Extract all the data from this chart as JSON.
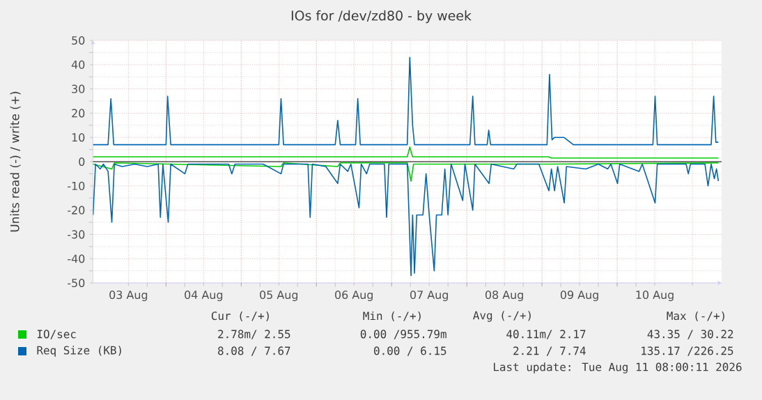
{
  "chart_data": {
    "type": "line",
    "title": "IOs for /dev/zd80 - by week",
    "ylabel": "Units read (-) / write (+)",
    "xlim": [
      "2026-08-03T00:40",
      "2026-08-11T09:20"
    ],
    "ylim": [
      -50,
      50
    ],
    "yticks": [
      -50,
      -40,
      -30,
      -20,
      -10,
      0,
      10,
      20,
      30,
      40,
      50
    ],
    "xticks": [
      {
        "value": "2026-08-03T12:00",
        "label": "03 Aug"
      },
      {
        "value": "2026-08-04T12:00",
        "label": "04 Aug"
      },
      {
        "value": "2026-08-05T12:00",
        "label": "05 Aug"
      },
      {
        "value": "2026-08-06T12:00",
        "label": "06 Aug"
      },
      {
        "value": "2026-08-07T12:00",
        "label": "07 Aug"
      },
      {
        "value": "2026-08-08T12:00",
        "label": "08 Aug"
      },
      {
        "value": "2026-08-09T12:00",
        "label": "09 Aug"
      },
      {
        "value": "2026-08-10T12:00",
        "label": "10 Aug"
      },
      {
        "value": "2026-08-04T00:00",
        "label": null
      },
      {
        "value": "2026-08-05T00:00",
        "label": null
      },
      {
        "value": "2026-08-06T00:00",
        "label": null
      },
      {
        "value": "2026-08-07T00:00",
        "label": null
      },
      {
        "value": "2026-08-08T00:00",
        "label": null
      },
      {
        "value": "2026-08-09T00:00",
        "label": null
      },
      {
        "value": "2026-08-10T00:00",
        "label": null
      },
      {
        "value": "2026-08-11T00:00",
        "label": null
      }
    ],
    "grid": true,
    "legend": "bottom",
    "series": [
      {
        "color": "#00cc00",
        "x": [
          "2026-08-03T00:42",
          "2026-08-03T06:42",
          "2026-08-03T07:30",
          "2026-08-05T12:42",
          "2026-08-05T13:30",
          "2026-08-06T06:48",
          "2026-08-06T07:36",
          "2026-08-07T05:00",
          "2026-08-07T06:12",
          "2026-08-07T07:00",
          "2026-08-09T02:12",
          "2026-08-11T08:18"
        ],
        "values": [
          -1,
          -3,
          -0.5,
          -2,
          -0.5,
          -2,
          -0.5,
          -0.5,
          -8,
          -1,
          -1,
          -0.5
        ]
      },
      {
        "name": "IO/sec",
        "color": "#00cc00",
        "x": [
          "2026-08-03T00:42",
          "2026-08-07T05:00",
          "2026-08-07T05:48",
          "2026-08-07T06:42",
          "2026-08-09T02:00",
          "2026-08-09T03:00",
          "2026-08-11T08:18"
        ],
        "values": [
          2,
          2,
          6,
          2,
          2,
          1.5,
          1.5
        ]
      },
      {
        "color": "#0066b3",
        "x": [
          "2026-08-03T00:42",
          "2026-08-03T01:30",
          "2026-08-03T03:00",
          "2026-08-03T04:00",
          "2026-08-03T05:30",
          "2026-08-03T06:42",
          "2026-08-03T07:30",
          "2026-08-03T10:00",
          "2026-08-03T14:00",
          "2026-08-03T18:00",
          "2026-08-03T21:30",
          "2026-08-03T22:12",
          "2026-08-03T23:00",
          "2026-08-04T00:42",
          "2026-08-04T01:30",
          "2026-08-04T06:00",
          "2026-08-04T07:00",
          "2026-08-04T20:00",
          "2026-08-04T21:00",
          "2026-08-04T22:00",
          "2026-08-05T07:00",
          "2026-08-05T12:42",
          "2026-08-05T13:30",
          "2026-08-05T21:18",
          "2026-08-05T22:00",
          "2026-08-05T22:42",
          "2026-08-06T03:00",
          "2026-08-06T06:48",
          "2026-08-06T07:36",
          "2026-08-06T10:00",
          "2026-08-06T11:00",
          "2026-08-06T13:36",
          "2026-08-06T14:18",
          "2026-08-06T16:00",
          "2026-08-06T17:00",
          "2026-08-06T21:42",
          "2026-08-06T22:24",
          "2026-08-06T23:06",
          "2026-08-07T05:00",
          "2026-08-07T06:12",
          "2026-08-07T06:42",
          "2026-08-07T07:18",
          "2026-08-07T08:00",
          "2026-08-07T10:00",
          "2026-08-07T11:00",
          "2026-08-07T12:00",
          "2026-08-07T13:36",
          "2026-08-07T14:18",
          "2026-08-07T16:00",
          "2026-08-07T17:00",
          "2026-08-07T18:00",
          "2026-08-07T19:00",
          "2026-08-07T22:42",
          "2026-08-07T23:24",
          "2026-08-08T01:54",
          "2026-08-08T02:36",
          "2026-08-08T07:06",
          "2026-08-08T07:48",
          "2026-08-08T15:00",
          "2026-08-08T16:00",
          "2026-08-08T23:00",
          "2026-08-09T02:12",
          "2026-08-09T03:00",
          "2026-08-09T04:00",
          "2026-08-09T05:00",
          "2026-08-09T07:06",
          "2026-08-09T07:48",
          "2026-08-09T14:00",
          "2026-08-09T18:00",
          "2026-08-09T21:00",
          "2026-08-09T22:00",
          "2026-08-10T00:06",
          "2026-08-10T00:48",
          "2026-08-10T07:00",
          "2026-08-10T08:00",
          "2026-08-10T12:06",
          "2026-08-10T12:48",
          "2026-08-10T22:00",
          "2026-08-10T22:42",
          "2026-08-10T23:24",
          "2026-08-11T04:00",
          "2026-08-11T05:00",
          "2026-08-11T06:00",
          "2026-08-11T07:00",
          "2026-08-11T07:42",
          "2026-08-11T08:18"
        ],
        "values": [
          -22,
          -1,
          -3,
          -1,
          -4,
          -25,
          -1,
          -2,
          -1,
          -2,
          -1,
          -23,
          -1,
          -25,
          -1,
          -5,
          -1,
          -1,
          -5,
          -1,
          -1,
          -5,
          -1,
          -1,
          -23,
          -1,
          -2,
          -9,
          -1,
          -4,
          -1,
          -19,
          -1,
          -5,
          -1,
          -1,
          -23,
          -1,
          -1,
          -47,
          -22,
          -46,
          -22,
          -22,
          -5,
          -22,
          -45,
          -22,
          -22,
          -3,
          -22,
          -1,
          -16,
          -1,
          -20,
          -1,
          -9,
          -1,
          -3,
          -1,
          -1,
          -12,
          -3,
          -12,
          -2,
          -17,
          -2,
          -3,
          -1,
          -3,
          -1,
          -9,
          -1,
          -4,
          -1,
          -17,
          -1,
          -1,
          -5,
          -1,
          -1,
          -10,
          -1,
          -7,
          -3,
          -8
        ]
      },
      {
        "name": "Req Size (KB)",
        "color": "#0066b3",
        "x": [
          "2026-08-03T00:42",
          "2026-08-03T05:30",
          "2026-08-03T06:24",
          "2026-08-03T07:18",
          "2026-08-04T00:00",
          "2026-08-04T00:30",
          "2026-08-04T01:30",
          "2026-08-05T12:00",
          "2026-08-05T12:42",
          "2026-08-05T13:30",
          "2026-08-06T06:00",
          "2026-08-06T06:48",
          "2026-08-06T07:36",
          "2026-08-06T12:30",
          "2026-08-06T13:12",
          "2026-08-06T14:00",
          "2026-08-07T05:00",
          "2026-08-07T05:48",
          "2026-08-07T06:42",
          "2026-08-07T07:18",
          "2026-08-08T01:00",
          "2026-08-08T01:54",
          "2026-08-08T02:36",
          "2026-08-08T06:30",
          "2026-08-08T07:00",
          "2026-08-08T07:36",
          "2026-08-09T01:36",
          "2026-08-09T02:24",
          "2026-08-09T03:12",
          "2026-08-09T04:00",
          "2026-08-09T07:00",
          "2026-08-09T09:00",
          "2026-08-09T10:00",
          "2026-08-10T11:24",
          "2026-08-10T12:06",
          "2026-08-10T12:48",
          "2026-08-11T06:00",
          "2026-08-11T06:48",
          "2026-08-11T07:30",
          "2026-08-11T08:18"
        ],
        "values": [
          7,
          7,
          26,
          7,
          7,
          27,
          7,
          7,
          26,
          7,
          7,
          17,
          7,
          7,
          26,
          7,
          7,
          43,
          15,
          7,
          7,
          27,
          7,
          7,
          13,
          7,
          7,
          36,
          9,
          10,
          10,
          8,
          7,
          7,
          27,
          7,
          7,
          27,
          8,
          8
        ]
      }
    ],
    "ref_lines": [
      {
        "axis": "y",
        "value": 0,
        "color": "#000000"
      }
    ],
    "annotations": [
      "Cur (-/+)",
      "Min (-/+)",
      "Avg (-/+)",
      "Max (-/+)",
      "2.78m/ 2.55",
      "0.00 /955.79m",
      "40.11m/ 2.17",
      "43.35 / 30.22",
      "8.08 / 7.67",
      "0.00 / 6.15",
      "2.21 / 7.74",
      "135.17 /226.25",
      "Last update: Tue Aug 11 08:00:11 2026"
    ]
  }
}
